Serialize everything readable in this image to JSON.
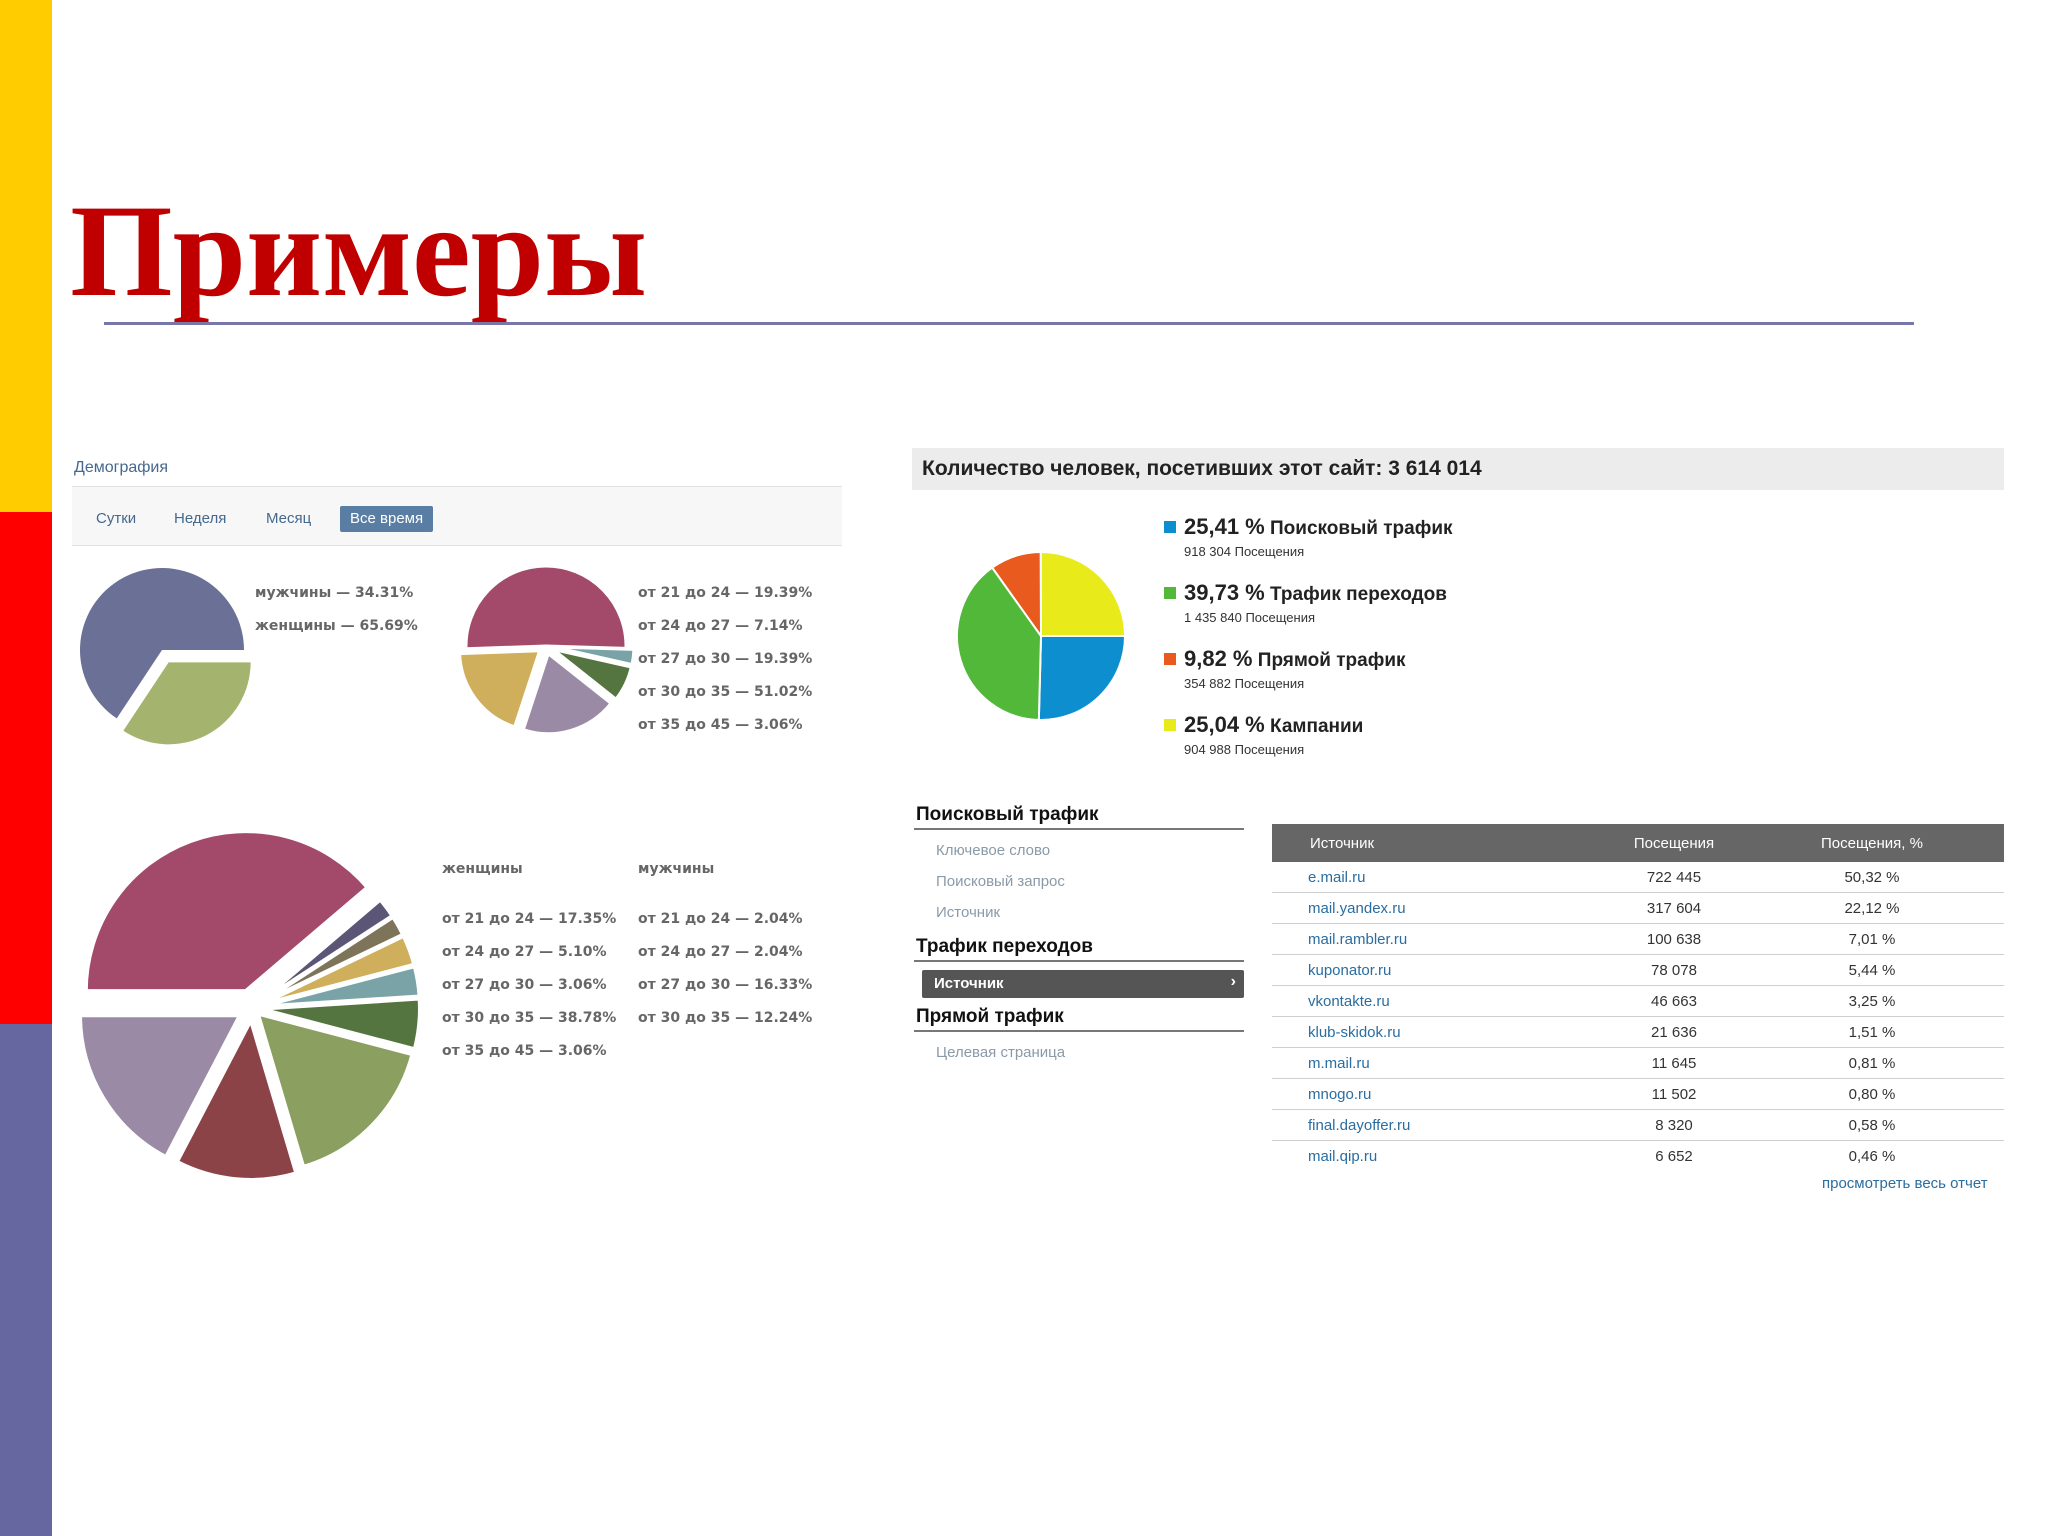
{
  "slide": {
    "title": "Примеры",
    "colors": {
      "stripe_top": "#ffcc00",
      "stripe_middle": "#ff0000",
      "stripe_bottom": "#6666a0",
      "title": "#c00000",
      "rule": "#7777aa"
    }
  },
  "demography": {
    "heading": "Демография",
    "tabs": [
      {
        "label": "Сутки",
        "active": false
      },
      {
        "label": "Неделя",
        "active": false
      },
      {
        "label": "Месяц",
        "active": false
      },
      {
        "label": "Все время",
        "active": true
      }
    ],
    "gender_legend": [
      "мужчины — 34.31%",
      "женщины — 65.69%"
    ],
    "age_legend": [
      "от 21 до 24 — 19.39%",
      "от 24 до 27 — 7.14%",
      "от 27 до 30 — 19.39%",
      "от 30 до 35 — 51.02%",
      "от 35 до 45 — 3.06%"
    ],
    "combined": {
      "women_heading": "женщины",
      "men_heading": "мужчины",
      "women_legend": [
        "от 21 до 24 — 17.35%",
        "от 24 до 27 — 5.10%",
        "от 27 до 30 — 3.06%",
        "от 30 до 35 — 38.78%",
        "от 35 до 45 — 3.06%"
      ],
      "men_legend": [
        "от 21 до 24 — 2.04%",
        "от 24 до 27 — 2.04%",
        "от 27 до 30 — 16.33%",
        "от 30 до 35 — 12.24%"
      ]
    }
  },
  "traffic": {
    "visitors_label": "Количество человек, посетивших этот сайт: 3 614 014",
    "legend": [
      {
        "pct": "25,41 %",
        "name": "Поисковый трафик",
        "visits": "918 304 Посещения",
        "color": "#0d8fcf"
      },
      {
        "pct": "39,73 %",
        "name": "Трафик переходов",
        "visits": "1 435 840 Посещения",
        "color": "#52b83a"
      },
      {
        "pct": "9,82 %",
        "name": "Прямой трафик",
        "visits": "354 882 Посещения",
        "color": "#e85a1e"
      },
      {
        "pct": "25,04 %",
        "name": "Кампании",
        "visits": "904 988 Посещения",
        "color": "#e8ea1a"
      }
    ],
    "nav": {
      "search_section": "Поисковый трафик",
      "search_links": [
        "Ключевое слово",
        "Поисковый запрос",
        "Источник"
      ],
      "referral_section": "Трафик переходов",
      "referral_active": "Источник",
      "referral_arrow": "›",
      "direct_section": "Прямой трафик",
      "direct_links": [
        "Целевая страница"
      ]
    },
    "table": {
      "headers": [
        "Источник",
        "Посещения",
        "Посещения, %"
      ],
      "rows": [
        [
          "e.mail.ru",
          "722 445",
          "50,32 %"
        ],
        [
          "mail.yandex.ru",
          "317 604",
          "22,12 %"
        ],
        [
          "mail.rambler.ru",
          "100 638",
          "7,01 %"
        ],
        [
          "kuponator.ru",
          "78 078",
          "5,44 %"
        ],
        [
          "vkontakte.ru",
          "46 663",
          "3,25 %"
        ],
        [
          "klub-skidok.ru",
          "21 636",
          "1,51 %"
        ],
        [
          "m.mail.ru",
          "11 645",
          "0,81 %"
        ],
        [
          "mnogo.ru",
          "11 502",
          "0,80 %"
        ],
        [
          "final.dayoffer.ru",
          "8 320",
          "0,58 %"
        ],
        [
          "mail.qip.ru",
          "6 652",
          "0,46 %"
        ]
      ],
      "full_report_link": "просмотреть весь отчет"
    }
  },
  "chart_data": [
    {
      "type": "pie",
      "slices": [
        {
          "label": "мужчины",
          "value": 34.31,
          "color": "#a4b46f"
        },
        {
          "label": "женщины",
          "value": 65.69,
          "color": "#6b7196"
        }
      ]
    },
    {
      "type": "pie",
      "slices": [
        {
          "label": "от 21 до 24",
          "value": 19.39,
          "color": "#9a8aa6"
        },
        {
          "label": "от 24 до 27",
          "value": 7.14,
          "color": "#54753f"
        },
        {
          "label": "от 27 до 30",
          "value": 19.39,
          "color": "#cfae5c"
        },
        {
          "label": "от 30 до 35",
          "value": 51.02,
          "color": "#a34a6a"
        },
        {
          "label": "от 35 до 45",
          "value": 3.06,
          "color": "#7aa3a8"
        }
      ]
    },
    {
      "type": "pie",
      "slices": [
        {
          "label": "женщины от 21 до 24",
          "value": 17.35,
          "color": "#9a8aa6"
        },
        {
          "label": "женщины от 24 до 27",
          "value": 5.1,
          "color": "#54753f"
        },
        {
          "label": "женщины от 27 до 30",
          "value": 3.06,
          "color": "#cfae5c"
        },
        {
          "label": "женщины от 30 до 35",
          "value": 38.78,
          "color": "#a34a6a"
        },
        {
          "label": "женщины от 35 до 45",
          "value": 3.06,
          "color": "#7aa3a8"
        },
        {
          "label": "мужчины от 21 до 24",
          "value": 2.04,
          "color": "#5b5676"
        },
        {
          "label": "мужчины от 24 до 27",
          "value": 2.04,
          "color": "#7d7459"
        },
        {
          "label": "мужчины от 27 до 30",
          "value": 16.33,
          "color": "#8a9f60"
        },
        {
          "label": "мужчины от 30 до 35",
          "value": 12.24,
          "color": "#8b4348"
        }
      ]
    },
    {
      "type": "pie",
      "slices": [
        {
          "label": "Поисковый трафик",
          "value": 25.41,
          "color": "#0d8fcf"
        },
        {
          "label": "Трафик переходов",
          "value": 39.73,
          "color": "#52b83a"
        },
        {
          "label": "Прямой трафик",
          "value": 9.82,
          "color": "#e85a1e"
        },
        {
          "label": "Кампании",
          "value": 25.04,
          "color": "#e8ea1a"
        }
      ]
    }
  ]
}
